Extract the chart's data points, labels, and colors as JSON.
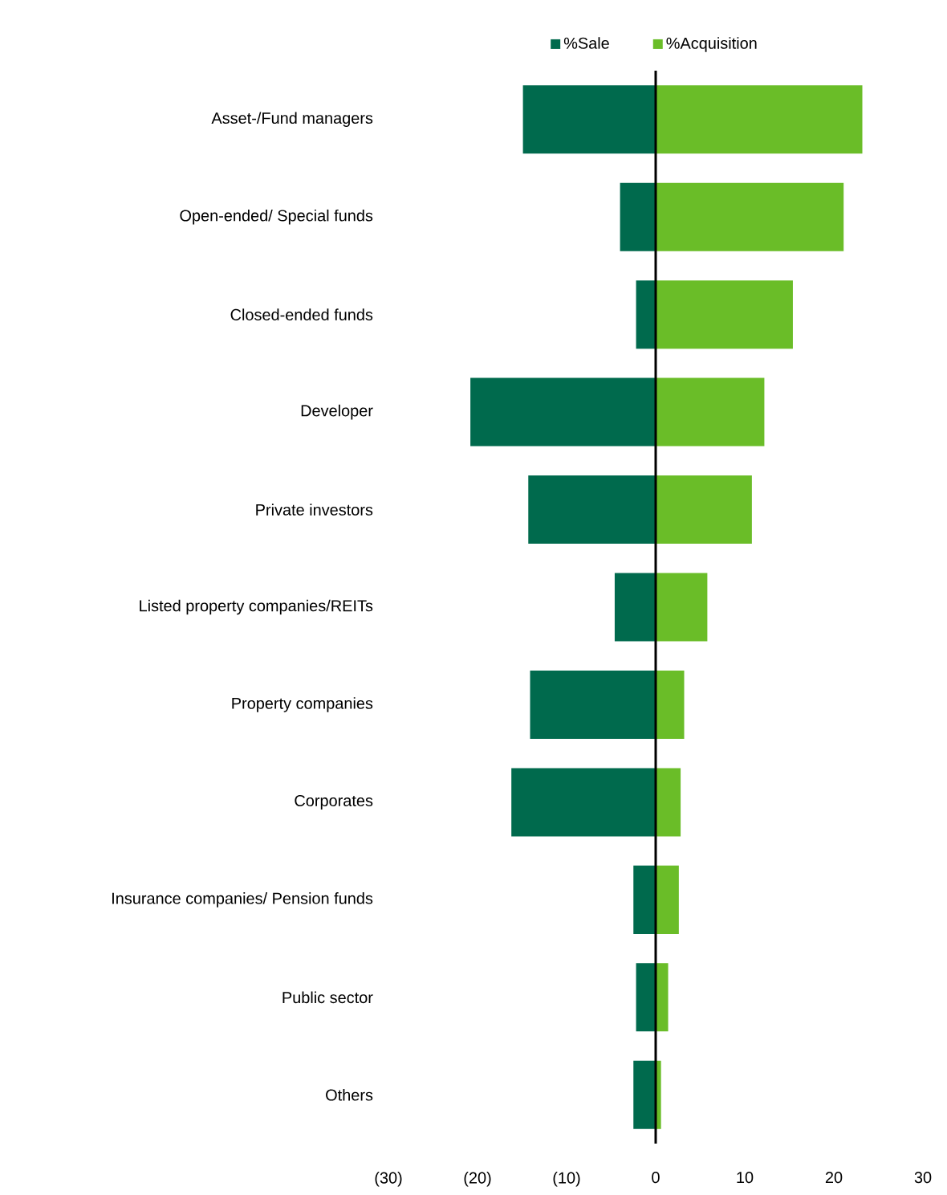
{
  "chart_data": {
    "type": "bar",
    "orientation": "horizontal",
    "categories": [
      "Asset-/Fund managers",
      "Open-ended/ Special funds",
      "Closed-ended funds",
      "Developer",
      "Private investors",
      "Listed property companies/REITs",
      "Property companies",
      "Corporates",
      "Insurance companies/ Pension funds",
      "Public sector",
      "Others"
    ],
    "series": [
      {
        "name": "%Sale",
        "color": "#006a4d",
        "values": [
          -14.9,
          -4.0,
          -2.2,
          -20.8,
          -14.3,
          -4.6,
          -14.1,
          -16.2,
          -2.5,
          -2.2,
          -2.5
        ]
      },
      {
        "name": "%Acquisition",
        "color": "#6abd28",
        "values": [
          23.2,
          21.1,
          15.4,
          12.2,
          10.8,
          5.8,
          3.2,
          2.8,
          2.6,
          1.4,
          0.6
        ]
      }
    ],
    "xlim": [
      -30,
      30
    ],
    "xticks": [
      {
        "value": -30,
        "label": "(30)"
      },
      {
        "value": -20,
        "label": "(20)"
      },
      {
        "value": -10,
        "label": "(10)"
      },
      0,
      10,
      20,
      30
    ],
    "legend": "top",
    "stacked": true
  }
}
